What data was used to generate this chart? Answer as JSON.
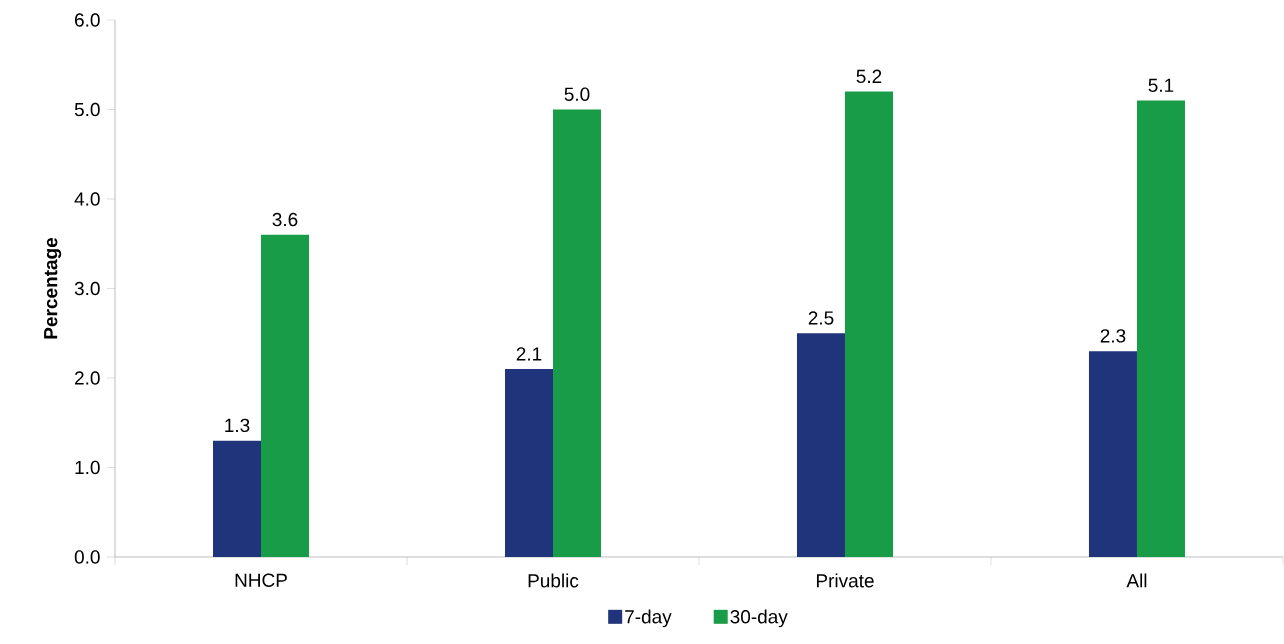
{
  "chart_data": {
    "type": "bar",
    "ylabel": "Percentage",
    "categories": [
      "NHCP",
      "Public",
      "Private",
      "All"
    ],
    "series": [
      {
        "name": "7-day",
        "color": "#1f347a",
        "values": [
          1.3,
          2.1,
          2.5,
          2.3
        ],
        "value_labels": [
          "1.3",
          "2.1",
          "2.5",
          "2.3"
        ]
      },
      {
        "name": "30-day",
        "color": "#189c48",
        "values": [
          3.6,
          5.0,
          5.2,
          5.1
        ],
        "value_labels": [
          "3.6",
          "5.0",
          "5.2",
          "5.1"
        ]
      }
    ],
    "ylim": [
      0,
      6
    ],
    "yticks": [
      {
        "value": 0,
        "label": "0.0"
      },
      {
        "value": 1,
        "label": "1.0"
      },
      {
        "value": 2,
        "label": "2.0"
      },
      {
        "value": 3,
        "label": "3.0"
      },
      {
        "value": 4,
        "label": "4.0"
      },
      {
        "value": 5,
        "label": "5.0"
      },
      {
        "value": 6,
        "label": "6.0"
      }
    ],
    "grid": false,
    "legend": "bottom"
  }
}
